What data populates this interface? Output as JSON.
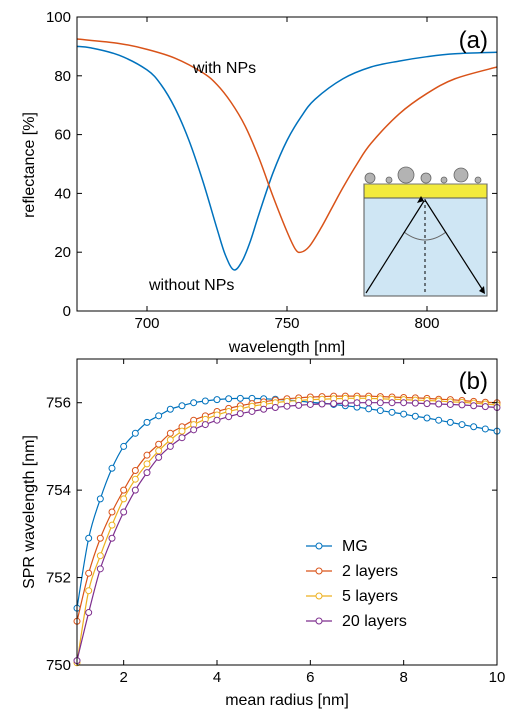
{
  "colors": {
    "blue": "#0072BD",
    "orange": "#D95319",
    "yellow": "#EDB120",
    "purple": "#7E2F8E",
    "inset_substrate": "#cfe6f4",
    "inset_gold": "#f2ea3c",
    "inset_particle": "#b3b3b3"
  },
  "chart_data": [
    {
      "type": "line",
      "panel_label": "(a)",
      "xlabel": "wavelength [nm]",
      "ylabel": "reflectance [%]",
      "xlim": [
        675,
        825
      ],
      "ylim": [
        0,
        100
      ],
      "xticks": [
        700,
        750,
        800
      ],
      "yticks": [
        0,
        20,
        40,
        60,
        80,
        100
      ],
      "grid": false,
      "series": [
        {
          "name": "without NPs",
          "color": "blue",
          "resonance": {
            "min_wavelength": 731,
            "min_reflectance": 14
          },
          "x": [
            675,
            680,
            690,
            700,
            705,
            710,
            715,
            720,
            725,
            728,
            731,
            734,
            737,
            740,
            745,
            750,
            755,
            760,
            770,
            780,
            790,
            800,
            810,
            825
          ],
          "y": [
            90,
            89.5,
            87,
            82,
            77,
            69,
            58,
            44,
            28,
            19,
            14,
            17,
            24,
            33,
            47,
            58,
            66,
            72,
            79,
            83,
            85,
            86.5,
            87.5,
            88
          ]
        },
        {
          "name": "with NPs",
          "color": "orange",
          "resonance": {
            "min_wavelength": 755,
            "min_reflectance": 20
          },
          "x": [
            675,
            690,
            700,
            710,
            720,
            725,
            730,
            735,
            740,
            745,
            750,
            753,
            755,
            758,
            762,
            766,
            770,
            775,
            780,
            790,
            800,
            810,
            825
          ],
          "y": [
            92.5,
            91,
            89,
            86,
            81,
            77,
            71,
            63,
            52,
            39,
            27,
            21,
            20,
            22,
            28,
            35,
            42,
            50,
            57,
            67,
            74,
            79,
            83
          ]
        }
      ],
      "annotations": [
        {
          "text": "with NPs",
          "series": "with NPs"
        },
        {
          "text": "without NPs",
          "series": "without NPs"
        }
      ],
      "inset": "Kretschmann prism schematic with gold film and nanoparticles"
    },
    {
      "type": "line",
      "panel_label": "(b)",
      "xlabel": "mean radius [nm]",
      "ylabel": "SPR wavelength [nm]",
      "xlim": [
        1,
        10
      ],
      "ylim": [
        750,
        757
      ],
      "xticks": [
        2,
        4,
        6,
        8,
        10
      ],
      "yticks": [
        750,
        752,
        754,
        756
      ],
      "grid": false,
      "legend_position": "center-right",
      "markers": "open-circle",
      "x": [
        1.0,
        1.25,
        1.5,
        1.75,
        2.0,
        2.25,
        2.5,
        2.75,
        3.0,
        3.25,
        3.5,
        3.75,
        4.0,
        4.25,
        4.5,
        4.75,
        5.0,
        5.25,
        5.5,
        5.75,
        6.0,
        6.25,
        6.5,
        6.75,
        7.0,
        7.25,
        7.5,
        7.75,
        8.0,
        8.25,
        8.5,
        8.75,
        9.0,
        9.25,
        9.5,
        9.75,
        10.0
      ],
      "series": [
        {
          "name": "MG",
          "color": "blue",
          "values": [
            751.3,
            752.9,
            753.8,
            754.5,
            755.0,
            755.3,
            755.55,
            755.7,
            755.85,
            755.93,
            756.0,
            756.04,
            756.07,
            756.09,
            756.1,
            756.1,
            756.09,
            756.08,
            756.06,
            756.04,
            756.01,
            755.99,
            755.96,
            755.93,
            755.9,
            755.86,
            755.82,
            755.78,
            755.74,
            755.69,
            755.65,
            755.6,
            755.55,
            755.5,
            755.45,
            755.4,
            755.35
          ]
        },
        {
          "name": "2 layers",
          "color": "orange",
          "values": [
            751.0,
            752.1,
            752.9,
            753.5,
            754.0,
            754.45,
            754.8,
            755.05,
            755.3,
            755.45,
            755.6,
            755.7,
            755.8,
            755.87,
            755.93,
            755.98,
            756.02,
            756.06,
            756.09,
            756.11,
            756.13,
            756.14,
            756.15,
            756.15,
            756.15,
            756.15,
            756.14,
            756.13,
            756.12,
            756.11,
            756.1,
            756.08,
            756.07,
            756.05,
            756.03,
            756.01,
            756.0
          ]
        },
        {
          "name": "5 layers",
          "color": "yellow",
          "values": [
            750.05,
            751.7,
            752.5,
            753.2,
            753.8,
            754.25,
            754.6,
            754.9,
            755.15,
            755.35,
            755.5,
            755.62,
            755.72,
            755.8,
            755.86,
            755.92,
            755.96,
            756.0,
            756.03,
            756.05,
            756.07,
            756.08,
            756.09,
            756.1,
            756.1,
            756.1,
            756.09,
            756.08,
            756.07,
            756.06,
            756.05,
            756.04,
            756.02,
            756.01,
            755.99,
            755.97,
            755.95
          ]
        },
        {
          "name": "20 layers",
          "color": "purple",
          "values": [
            750.1,
            751.2,
            752.2,
            752.9,
            753.5,
            754.0,
            754.4,
            754.75,
            755.0,
            755.2,
            755.38,
            755.5,
            755.6,
            755.68,
            755.75,
            755.8,
            755.85,
            755.89,
            755.92,
            755.94,
            755.96,
            755.97,
            755.98,
            755.99,
            756.0,
            756.0,
            756.0,
            756.0,
            756.0,
            755.99,
            755.98,
            755.97,
            755.96,
            755.95,
            755.93,
            755.91,
            755.89
          ]
        }
      ]
    }
  ]
}
